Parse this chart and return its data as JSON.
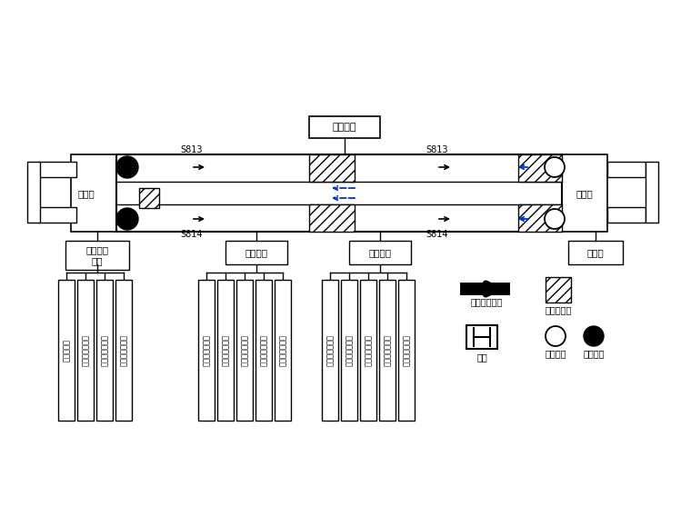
{
  "bg_color": "#ffffff",
  "labels": {
    "shigong_jujing": "施工竖井",
    "zhen_long_zhan": "镇龙站",
    "zhong_xin_zhan": "中新站",
    "mingkao_qu": "明挖车站\n工区",
    "dun_gou_qu": "盾构工区",
    "kuang_shan_qu": "矿山工区",
    "S813": "S813",
    "S814": "S814",
    "legend_shield_dir": "盾构掘进方向",
    "legend_mountain_tunnel": "矿山法隧道",
    "legend_station": "车站",
    "legend_shield_receive": "盾构接收",
    "legend_shield_launch": "盾构始发"
  },
  "left_teams": [
    "土方作业队",
    "围护结构作业队",
    "防水施工作业队",
    "结构施工作业队"
  ],
  "mid_teams": [
    "盾构施工作业队",
    "盾构配合作业队",
    "中间竖井作业队",
    "盾构施工作业队",
    "盾构配合作业队"
  ],
  "right_teams": [
    "矿山施工作业队",
    "矿山配合作业队",
    "施工竖井作业队",
    "矿山施工作业队",
    "矿山配合作业队"
  ]
}
